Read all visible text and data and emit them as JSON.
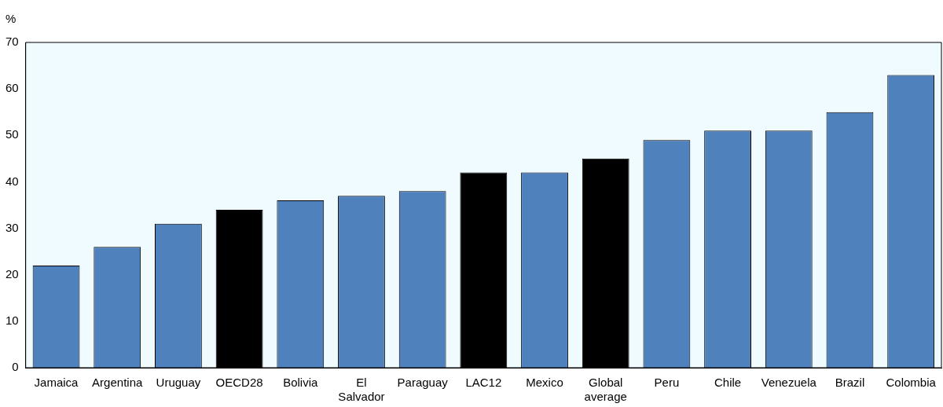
{
  "chart_data": {
    "type": "bar",
    "ylabel": "%",
    "categories": [
      "Jamaica",
      "Argentina",
      "Uruguay",
      "OECD28",
      "Bolivia",
      "El Salvador",
      "Paraguay",
      "LAC12",
      "Mexico",
      "Global average",
      "Peru",
      "Chile",
      "Venezuela",
      "Brazil",
      "Colombia"
    ],
    "values": [
      22,
      26,
      31,
      34,
      36,
      37,
      38,
      42,
      42,
      45,
      49,
      51,
      51,
      55,
      63
    ],
    "colors": [
      "#4f81bd",
      "#4f81bd",
      "#4f81bd",
      "#000000",
      "#4f81bd",
      "#4f81bd",
      "#4f81bd",
      "#000000",
      "#4f81bd",
      "#000000",
      "#4f81bd",
      "#4f81bd",
      "#4f81bd",
      "#4f81bd",
      "#4f81bd"
    ],
    "ylim": [
      0,
      70
    ],
    "yticks": [
      0,
      10,
      20,
      30,
      40,
      50,
      60,
      70
    ],
    "grid": false,
    "legend": false
  }
}
